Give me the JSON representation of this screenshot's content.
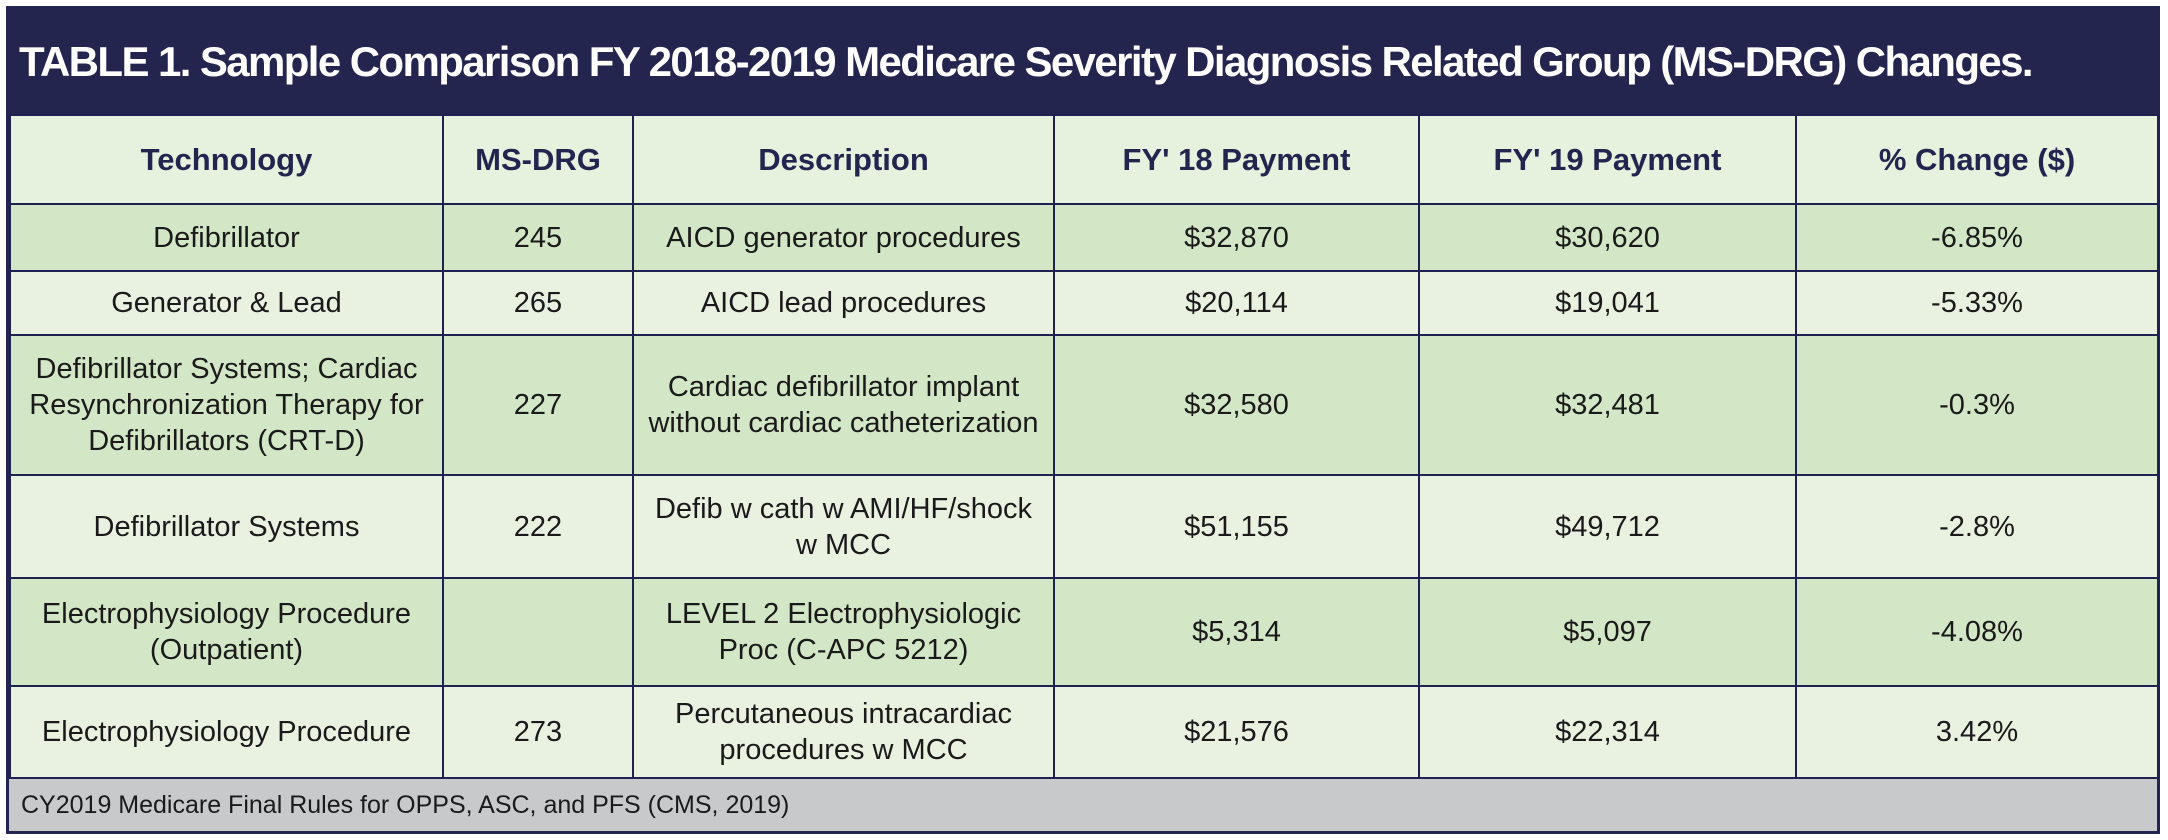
{
  "title": "TABLE 1. Sample Comparison FY 2018-2019 Medicare Severity Diagnosis Related Group (MS-DRG) Changes.",
  "columns": {
    "technology": "Technology",
    "msdrg": "MS-DRG",
    "description": "Description",
    "fy18": "FY' 18 Payment",
    "fy19": "FY' 19 Payment",
    "change": "% Change ($)"
  },
  "rows": [
    {
      "technology": "Defibrillator",
      "msdrg": "245",
      "description": "AICD generator procedures",
      "fy18": "$32,870",
      "fy19": "$30,620",
      "change": "-6.85%"
    },
    {
      "technology": "Generator & Lead",
      "msdrg": "265",
      "description": "AICD lead procedures",
      "fy18": "$20,114",
      "fy19": "$19,041",
      "change": "-5.33%"
    },
    {
      "technology": "Defibrillator Systems; Cardiac Resynchronization Therapy for Defibrillators (CRT-D)",
      "msdrg": "227",
      "description": "Cardiac defibrillator implant without cardiac catheterization",
      "fy18": "$32,580",
      "fy19": "$32,481",
      "change": "-0.3%"
    },
    {
      "technology": "Defibrillator Systems",
      "msdrg": "222",
      "description": "Defib w cath w AMI/HF/shock w MCC",
      "fy18": "$51,155",
      "fy19": "$49,712",
      "change": "-2.8%"
    },
    {
      "technology": "Electrophysiology Procedure (Outpatient)",
      "msdrg": "",
      "description": "LEVEL 2 Electrophysiologic Proc (C-APC 5212)",
      "fy18": "$5,314",
      "fy19": "$5,097",
      "change": "-4.08%"
    },
    {
      "technology": "Electrophysiology Procedure",
      "msdrg": "273",
      "description": "Percutaneous intracardiac procedures w MCC",
      "fy18": "$21,576",
      "fy19": "$22,314",
      "change": "3.42%"
    }
  ],
  "footer": "CY2019 Medicare Final Rules for OPPS, ASC, and PFS (CMS, 2019)",
  "colors": {
    "header_bar": "#23254f",
    "row_alt": "#d3e6c6",
    "row_plain": "#e9f2e1",
    "footer_bg": "#c8c9cb"
  }
}
